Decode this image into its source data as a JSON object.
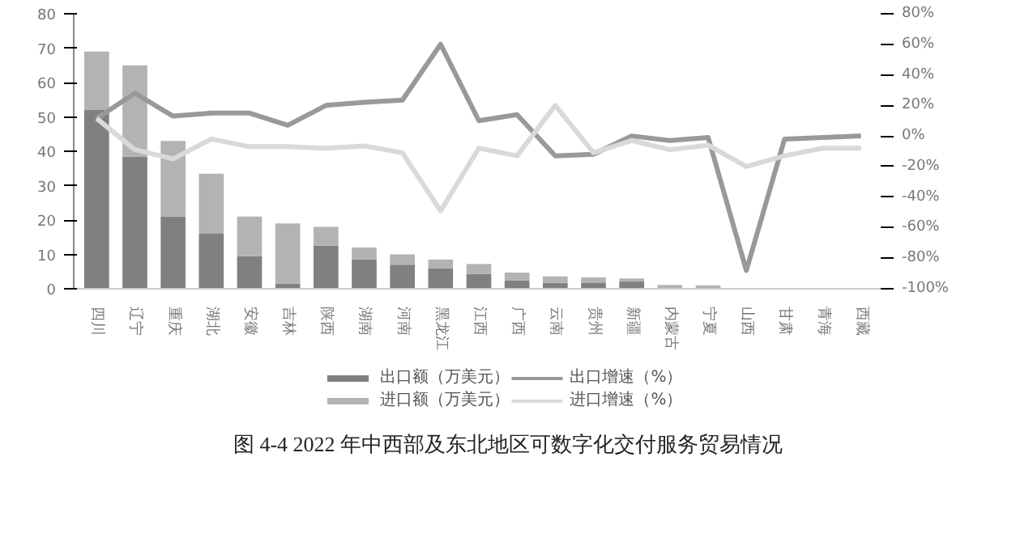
{
  "chart_data": {
    "type": "bar",
    "stacked": true,
    "title": "图 4-4 2022 年中西部及东北地区可数字化交付服务贸易情况",
    "categories": [
      "四川",
      "辽宁",
      "重庆",
      "湖北",
      "安徽",
      "吉林",
      "陕西",
      "湖南",
      "河南",
      "黑龙江",
      "江西",
      "广西",
      "云南",
      "贵州",
      "新疆",
      "内蒙古",
      "宁夏",
      "山西",
      "甘肃",
      "青海",
      "西藏"
    ],
    "series": [
      {
        "name": "出口额（万美元）",
        "color": "#808080",
        "values": [
          52,
          38.5,
          21,
          16,
          9.5,
          1.5,
          12.5,
          8.5,
          7,
          6,
          4.3,
          2.4,
          1.7,
          1.8,
          2.1,
          null,
          0.2,
          null,
          null,
          0,
          0
        ]
      },
      {
        "name": "进口额（万美元）",
        "color": "#b3b3b3",
        "values": [
          17,
          26.5,
          22,
          17.5,
          11.5,
          17.5,
          5.5,
          3.5,
          3,
          2.5,
          2.9,
          2.3,
          1.9,
          1.5,
          0.9,
          1.1,
          0.8,
          0.1,
          0.1,
          0,
          0
        ]
      },
      {
        "name": "出口增速（%）",
        "type": "line",
        "axis": "y2",
        "color": "#999999",
        "values": [
          11.5,
          28,
          13,
          15,
          15,
          7,
          20,
          22,
          23.5,
          60,
          10,
          14,
          -13,
          -12,
          0,
          -3,
          -1,
          -88,
          -2,
          -1,
          0
        ]
      },
      {
        "name": "进口增速（%）",
        "type": "line",
        "axis": "y2",
        "color": "#d9d9d9",
        "values": [
          11.5,
          -9,
          -15,
          -2,
          -7,
          -7,
          -8,
          -6.5,
          -11,
          -49,
          -8,
          -13,
          20,
          -11,
          -3,
          -9,
          -6,
          -20,
          -13,
          -8,
          -8
        ]
      }
    ],
    "ylim": [
      0,
      80
    ],
    "yticks": [
      0,
      10,
      20,
      30,
      40,
      50,
      60,
      70,
      80
    ],
    "y2lim": [
      -100,
      80
    ],
    "y2ticks": [
      {
        "value": -100,
        "label": "-100%"
      },
      {
        "value": -80,
        "label": "-80%"
      },
      {
        "value": -60,
        "label": "-60%"
      },
      {
        "value": -40,
        "label": "-40%"
      },
      {
        "value": -20,
        "label": "-20%"
      },
      {
        "value": 0,
        "label": "0%"
      },
      {
        "value": 20,
        "label": "20%"
      },
      {
        "value": 40,
        "label": "40%"
      },
      {
        "value": 60,
        "label": "60%"
      },
      {
        "value": 80,
        "label": "80%"
      }
    ],
    "legend": "bottom",
    "grid": false,
    "line_style": "solid",
    "marker": "none"
  }
}
